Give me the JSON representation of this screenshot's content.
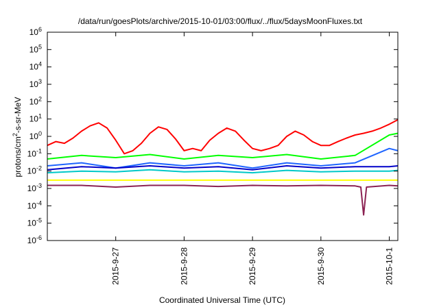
{
  "chart_data": {
    "type": "line",
    "title": "/data/run/goesPlots/archive/2015-10-01/03:00/flux/../flux/5daysMoonFluxes.txt",
    "xlabel": "Coordinated Universal Time (UTC)",
    "ylabel": {
      "prefix": "protons/cm",
      "sup": "2",
      "suffix": "-s-sr-MeV"
    },
    "yscale": "log",
    "ylim": [
      1e-06,
      1000000.0
    ],
    "ytick_labels": [
      {
        "base": "10",
        "exp": "-6"
      },
      {
        "base": "10",
        "exp": "-5"
      },
      {
        "base": "10",
        "exp": "-4"
      },
      {
        "base": "10",
        "exp": "-3"
      },
      {
        "base": "10",
        "exp": "-2"
      },
      {
        "base": "10",
        "exp": "-1"
      },
      {
        "base": "10",
        "exp": "0"
      },
      {
        "base": "10",
        "exp": "1"
      },
      {
        "base": "10",
        "exp": "2"
      },
      {
        "base": "10",
        "exp": "3"
      },
      {
        "base": "10",
        "exp": "4"
      },
      {
        "base": "10",
        "exp": "5"
      },
      {
        "base": "10",
        "exp": "6"
      }
    ],
    "xlim": [
      "2015-09-26 00:00",
      "2015-10-01 03:00"
    ],
    "xtick_labels": [
      "2015-9-27",
      "2015-9-28",
      "2015-9-29",
      "2015-9-30",
      "2015-10-1"
    ],
    "grid": false,
    "series": [
      {
        "color": "#ff0000",
        "x": [
          "2015-09-26 00:00",
          "2015-09-26 03:00",
          "2015-09-26 06:00",
          "2015-09-26 09:00",
          "2015-09-26 12:00",
          "2015-09-26 15:00",
          "2015-09-26 18:00",
          "2015-09-26 21:00",
          "2015-09-27 00:00",
          "2015-09-27 03:00",
          "2015-09-27 06:00",
          "2015-09-27 09:00",
          "2015-09-27 12:00",
          "2015-09-27 15:00",
          "2015-09-27 18:00",
          "2015-09-27 21:00",
          "2015-09-28 00:00",
          "2015-09-28 03:00",
          "2015-09-28 06:00",
          "2015-09-28 09:00",
          "2015-09-28 12:00",
          "2015-09-28 15:00",
          "2015-09-28 18:00",
          "2015-09-28 21:00",
          "2015-09-29 00:00",
          "2015-09-29 03:00",
          "2015-09-29 06:00",
          "2015-09-29 09:00",
          "2015-09-29 12:00",
          "2015-09-29 15:00",
          "2015-09-29 18:00",
          "2015-09-29 21:00",
          "2015-09-30 00:00",
          "2015-09-30 03:00",
          "2015-09-30 06:00",
          "2015-09-30 09:00",
          "2015-09-30 12:00",
          "2015-09-30 15:00",
          "2015-09-30 18:00",
          "2015-09-30 21:00",
          "2015-10-01 00:00",
          "2015-10-01 03:00"
        ],
        "values": [
          0.3,
          0.5,
          0.4,
          0.8,
          2,
          4,
          6,
          3,
          0.6,
          0.1,
          0.15,
          0.4,
          1.5,
          3.5,
          2.5,
          0.7,
          0.15,
          0.2,
          0.15,
          0.6,
          1.5,
          3,
          2,
          0.6,
          0.2,
          0.15,
          0.2,
          0.3,
          1,
          2,
          1.2,
          0.5,
          0.3,
          0.3,
          0.5,
          0.8,
          1.2,
          1.5,
          2,
          3,
          5,
          9
        ]
      },
      {
        "color": "#00ff00",
        "x": [
          "2015-09-26 00:00",
          "2015-09-26 12:00",
          "2015-09-27 00:00",
          "2015-09-27 12:00",
          "2015-09-28 00:00",
          "2015-09-28 12:00",
          "2015-09-29 00:00",
          "2015-09-29 12:00",
          "2015-09-30 00:00",
          "2015-09-30 12:00",
          "2015-10-01 00:00",
          "2015-10-01 03:00"
        ],
        "values": [
          0.05,
          0.08,
          0.06,
          0.09,
          0.05,
          0.08,
          0.06,
          0.09,
          0.05,
          0.08,
          1.2,
          1.5
        ]
      },
      {
        "color": "#1e64ff",
        "x": [
          "2015-09-26 00:00",
          "2015-09-26 12:00",
          "2015-09-27 00:00",
          "2015-09-27 12:00",
          "2015-09-28 00:00",
          "2015-09-28 12:00",
          "2015-09-29 00:00",
          "2015-09-29 12:00",
          "2015-09-30 00:00",
          "2015-09-30 12:00",
          "2015-10-01 00:00",
          "2015-10-01 03:00"
        ],
        "values": [
          0.02,
          0.03,
          0.015,
          0.03,
          0.02,
          0.03,
          0.015,
          0.03,
          0.02,
          0.03,
          0.2,
          0.15
        ]
      },
      {
        "color": "#0000c8",
        "x": [
          "2015-09-26 00:00",
          "2015-09-26 12:00",
          "2015-09-27 00:00",
          "2015-09-27 12:00",
          "2015-09-28 00:00",
          "2015-09-28 12:00",
          "2015-09-29 00:00",
          "2015-09-29 12:00",
          "2015-09-30 00:00",
          "2015-09-30 12:00",
          "2015-10-01 00:00",
          "2015-10-01 03:00"
        ],
        "values": [
          0.012,
          0.018,
          0.015,
          0.02,
          0.015,
          0.018,
          0.012,
          0.02,
          0.015,
          0.018,
          0.018,
          0.02
        ]
      },
      {
        "color": "#00c8c8",
        "x": [
          "2015-09-26 00:00",
          "2015-09-26 12:00",
          "2015-09-27 00:00",
          "2015-09-27 12:00",
          "2015-09-28 00:00",
          "2015-09-28 12:00",
          "2015-09-29 00:00",
          "2015-09-29 12:00",
          "2015-09-30 00:00",
          "2015-09-30 12:00",
          "2015-10-01 00:00",
          "2015-10-01 03:00"
        ],
        "values": [
          0.008,
          0.01,
          0.009,
          0.012,
          0.009,
          0.01,
          0.008,
          0.011,
          0.009,
          0.01,
          0.01,
          0.011
        ]
      },
      {
        "color": "#ffff00",
        "x": [
          "2015-09-26 00:00",
          "2015-10-01 03:00"
        ],
        "values": [
          0.003,
          0.003
        ]
      },
      {
        "color": "#8b2252",
        "x": [
          "2015-09-26 00:00",
          "2015-09-26 12:00",
          "2015-09-27 00:00",
          "2015-09-27 12:00",
          "2015-09-28 00:00",
          "2015-09-28 12:00",
          "2015-09-29 00:00",
          "2015-09-29 12:00",
          "2015-09-30 00:00",
          "2015-09-30 12:00",
          "2015-09-30 14:00",
          "2015-09-30 15:00",
          "2015-09-30 16:00",
          "2015-10-01 00:00",
          "2015-10-01 03:00"
        ],
        "values": [
          0.0015,
          0.0015,
          0.0012,
          0.0015,
          0.0015,
          0.0013,
          0.0015,
          0.0014,
          0.0015,
          0.0014,
          0.0012,
          3e-05,
          0.0012,
          0.0015,
          0.0014
        ]
      }
    ]
  }
}
